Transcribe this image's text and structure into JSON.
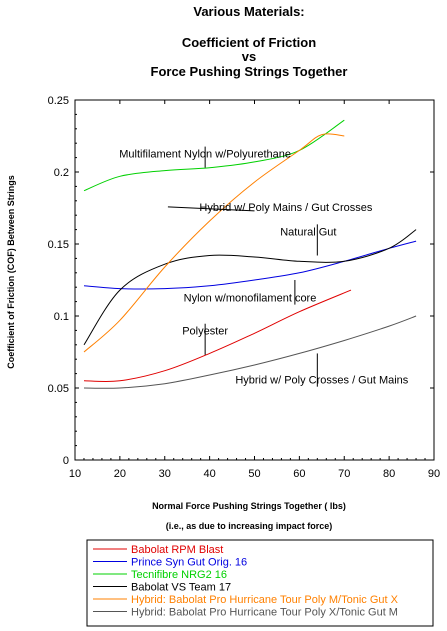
{
  "chart_data": {
    "type": "line",
    "title_lines": [
      "Various Materials:",
      "Coefficient of Friction",
      "vs",
      "Force Pushing Strings Together"
    ],
    "xlabel": "Normal Force Pushing Strings Together ( lbs)",
    "xlabel_note": "(i.e., as due to increasing impact force)",
    "ylabel": "Coefficient of Friction (COF) Between Strings",
    "xlim": [
      10,
      90
    ],
    "ylim": [
      0,
      0.25
    ],
    "xticks": [
      10,
      20,
      30,
      40,
      50,
      60,
      70,
      80,
      90
    ],
    "yticks": [
      0,
      0.05,
      0.1,
      0.15,
      0.2,
      0.25
    ],
    "xtick_labels": [
      "10",
      "20",
      "30",
      "40",
      "50",
      "60",
      "70",
      "80",
      "90"
    ],
    "ytick_labels": [
      "0",
      "0.05",
      "0.1",
      "0.15",
      "0.2",
      "0.25"
    ],
    "grid": false,
    "legend_position": "bottom",
    "series": [
      {
        "name": "Babolat RPM Blast",
        "color": "#e00000",
        "x": [
          12,
          20,
          30,
          40,
          50,
          60,
          71.5
        ],
        "y": [
          0.055,
          0.055,
          0.062,
          0.074,
          0.088,
          0.103,
          0.118
        ]
      },
      {
        "name": "Prince Syn Gut Orig. 16",
        "color": "#0000e0",
        "x": [
          12,
          20,
          30,
          40,
          50,
          60,
          70,
          80,
          86
        ],
        "y": [
          0.121,
          0.119,
          0.119,
          0.121,
          0.125,
          0.13,
          0.138,
          0.147,
          0.152
        ]
      },
      {
        "name": "Tecnifibre NRG2 16",
        "color": "#00d000",
        "x": [
          12,
          20,
          30,
          40,
          50,
          60,
          70
        ],
        "y": [
          0.187,
          0.197,
          0.201,
          0.203,
          0.207,
          0.215,
          0.236
        ]
      },
      {
        "name": "Babolat VS Team 17",
        "color": "#000000",
        "x": [
          12,
          20,
          30,
          40,
          50,
          60,
          70,
          80,
          86
        ],
        "y": [
          0.08,
          0.118,
          0.136,
          0.142,
          0.141,
          0.138,
          0.138,
          0.147,
          0.16
        ]
      },
      {
        "name": "Hybrid: Babolat Pro Hurricane Tour Poly M/Tonic Gut X",
        "color": "#ff8000",
        "x": [
          12,
          20,
          30,
          40,
          50,
          60,
          65,
          70
        ],
        "y": [
          0.075,
          0.097,
          0.134,
          0.166,
          0.193,
          0.215,
          0.226,
          0.225
        ]
      },
      {
        "name": "Hybrid: Babolat Pro Hurricane Tour Poly X/Tonic Gut M",
        "color": "#555555",
        "x": [
          12,
          20,
          30,
          40,
          50,
          60,
          70,
          80,
          86
        ],
        "y": [
          0.05,
          0.05,
          0.053,
          0.059,
          0.066,
          0.074,
          0.083,
          0.093,
          0.1
        ]
      }
    ],
    "annotations": [
      {
        "text": "Multifilament Nylon w/Polyurethane",
        "x": 39,
        "y": 0.21,
        "tx": 39,
        "ty": 0.203
      },
      {
        "text": "Hybrid w/ Poly Mains / Gut Crosses",
        "x": 57,
        "y": 0.173,
        "tx": 50,
        "ty": 0.173
      },
      {
        "text": "Natural Gut",
        "x": 62,
        "y": 0.156,
        "tx": 64,
        "ty": 0.142
      },
      {
        "text": "Nylon w/monofilament core",
        "x": 49,
        "y": 0.11,
        "tx": 59,
        "ty": 0.125
      },
      {
        "text": "Polyester",
        "x": 39,
        "y": 0.087,
        "tx": 39,
        "ty": 0.073
      },
      {
        "text": "Hybrid w/ Poly Crosses / Gut Mains",
        "x": 65,
        "y": 0.053,
        "tx": 64,
        "ty": 0.074
      }
    ]
  }
}
